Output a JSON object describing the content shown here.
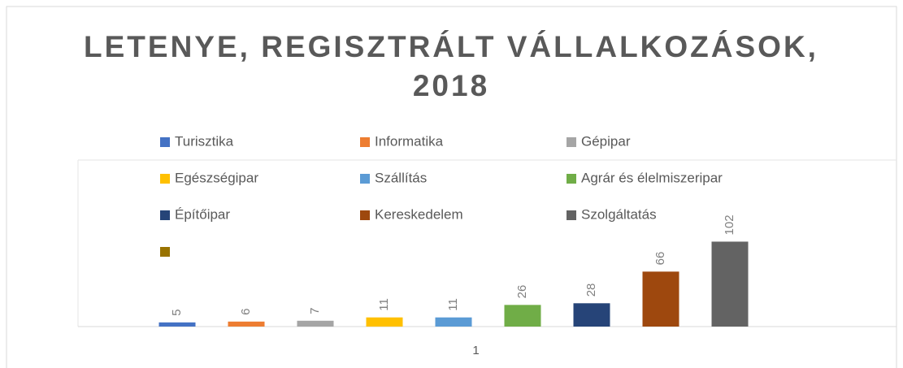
{
  "chart_data": {
    "type": "bar",
    "title": "LETENYE, REGISZTRÁLT VÁLLALKOZÁSOK, 2018",
    "categories": [
      "1"
    ],
    "ylim": [
      0,
      200
    ],
    "legend": "top",
    "series": [
      {
        "name": "Turisztika",
        "color": "#4472c4",
        "values": [
          5
        ]
      },
      {
        "name": "Informatika",
        "color": "#ed7d31",
        "values": [
          6
        ]
      },
      {
        "name": "Gépipar",
        "color": "#a5a5a5",
        "values": [
          7
        ]
      },
      {
        "name": "Egészségipar",
        "color": "#ffc000",
        "values": [
          11
        ]
      },
      {
        "name": "Szállítás",
        "color": "#5b9bd5",
        "values": [
          11
        ]
      },
      {
        "name": "Agrár és élelmiszeripar",
        "color": "#70ad47",
        "values": [
          26
        ]
      },
      {
        "name": "Építőipar",
        "color": "#264478",
        "values": [
          28
        ]
      },
      {
        "name": "Kereskedelem",
        "color": "#9e480e",
        "values": [
          66
        ]
      },
      {
        "name": "Szolgáltatás",
        "color": "#636363",
        "values": [
          102
        ]
      },
      {
        "name": null,
        "color": "#997300",
        "values": [
          null
        ]
      }
    ]
  }
}
